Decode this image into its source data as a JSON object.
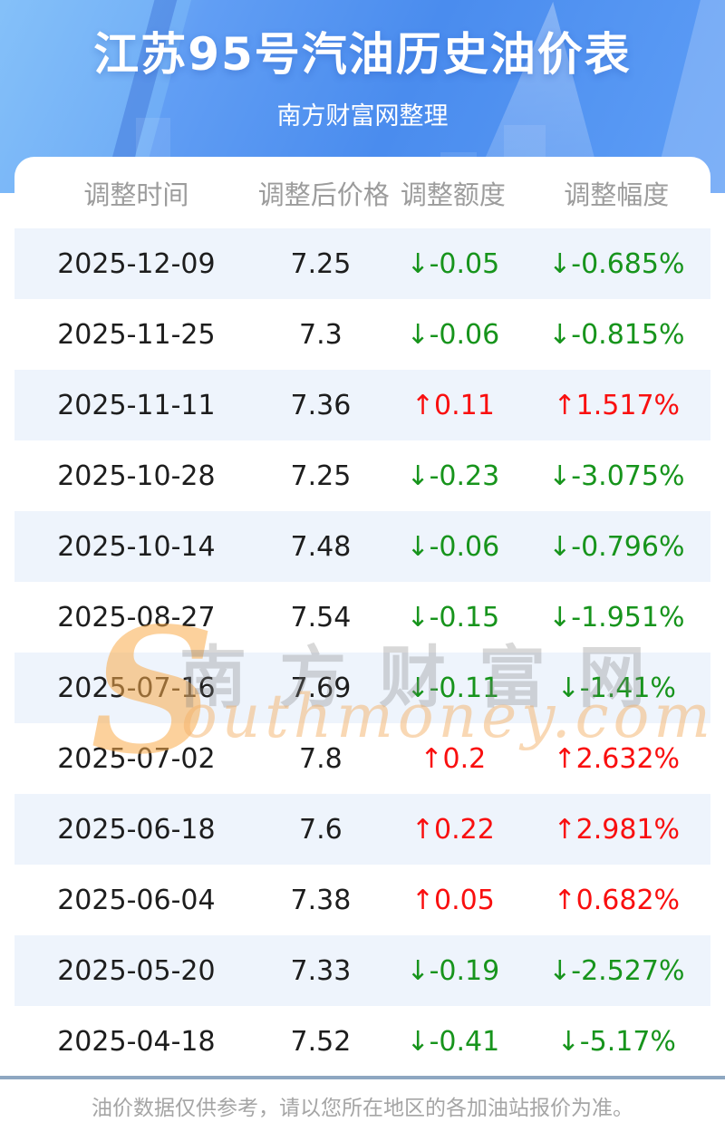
{
  "page": {
    "title": "江苏95号汽油历史油价表",
    "subtitle": "南方财富网整理",
    "footer_note": "油价数据仅供参考，请以您所在地区的各加油站报价为准。"
  },
  "watermark": {
    "initial": "S",
    "cn_text": "南方财富网",
    "latin_text": "outhmoney.com"
  },
  "icons": {
    "up_arrow": "↑",
    "down_arrow": "↓"
  },
  "colors": {
    "hero_blue": "#4a8cee",
    "stripe_blue": "#eef4fc",
    "up_red": "#f90f0f",
    "down_green": "#17941c",
    "divider_blue_gray": "#8ea7c1",
    "header_text_gray": "#9c9c9c"
  },
  "table": {
    "columns": [
      "调整时间",
      "调整后价格",
      "调整额度",
      "调整幅度"
    ],
    "rows": [
      {
        "date": "2025-12-09",
        "price": "7.25",
        "change": "-0.05",
        "pct": "-0.685%",
        "direction": "down"
      },
      {
        "date": "2025-11-25",
        "price": "7.3",
        "change": "-0.06",
        "pct": "-0.815%",
        "direction": "down"
      },
      {
        "date": "2025-11-11",
        "price": "7.36",
        "change": "0.11",
        "pct": "1.517%",
        "direction": "up"
      },
      {
        "date": "2025-10-28",
        "price": "7.25",
        "change": "-0.23",
        "pct": "-3.075%",
        "direction": "down"
      },
      {
        "date": "2025-10-14",
        "price": "7.48",
        "change": "-0.06",
        "pct": "-0.796%",
        "direction": "down"
      },
      {
        "date": "2025-08-27",
        "price": "7.54",
        "change": "-0.15",
        "pct": "-1.951%",
        "direction": "down"
      },
      {
        "date": "2025-07-16",
        "price": "7.69",
        "change": "-0.11",
        "pct": "-1.41%",
        "direction": "down"
      },
      {
        "date": "2025-07-02",
        "price": "7.8",
        "change": "0.2",
        "pct": "2.632%",
        "direction": "up"
      },
      {
        "date": "2025-06-18",
        "price": "7.6",
        "change": "0.22",
        "pct": "2.981%",
        "direction": "up"
      },
      {
        "date": "2025-06-04",
        "price": "7.38",
        "change": "0.05",
        "pct": "0.682%",
        "direction": "up"
      },
      {
        "date": "2025-05-20",
        "price": "7.33",
        "change": "-0.19",
        "pct": "-2.527%",
        "direction": "down"
      },
      {
        "date": "2025-04-18",
        "price": "7.52",
        "change": "-0.41",
        "pct": "-5.17%",
        "direction": "down"
      }
    ]
  },
  "chart_data": {
    "type": "table",
    "title": "江苏95号汽油历史油价表",
    "subtitle": "南方财富网整理",
    "columns": [
      "调整时间",
      "调整后价格",
      "调整额度",
      "调整幅度"
    ],
    "rows": [
      [
        "2025-12-09",
        "7.25",
        "↓-0.05",
        "↓-0.685%"
      ],
      [
        "2025-11-25",
        "7.3",
        "↓-0.06",
        "↓-0.815%"
      ],
      [
        "2025-11-11",
        "7.36",
        "↑0.11",
        "↑1.517%"
      ],
      [
        "2025-10-28",
        "7.25",
        "↓-0.23",
        "↓-3.075%"
      ],
      [
        "2025-10-14",
        "7.48",
        "↓-0.06",
        "↓-0.796%"
      ],
      [
        "2025-08-27",
        "7.54",
        "↓-0.15",
        "↓-1.951%"
      ],
      [
        "2025-07-16",
        "7.69",
        "↓-0.11",
        "↓-1.41%"
      ],
      [
        "2025-07-02",
        "7.8",
        "↑0.2",
        "↑2.632%"
      ],
      [
        "2025-06-18",
        "7.6",
        "↑0.22",
        "↑2.981%"
      ],
      [
        "2025-06-04",
        "7.38",
        "↑0.05",
        "↑0.682%"
      ],
      [
        "2025-05-20",
        "7.33",
        "↓-0.19",
        "↓-2.527%"
      ],
      [
        "2025-04-18",
        "7.52",
        "↓-0.41",
        "↓-5.17%"
      ]
    ],
    "prices_numeric": [
      7.25,
      7.3,
      7.36,
      7.25,
      7.48,
      7.54,
      7.69,
      7.8,
      7.6,
      7.38,
      7.33,
      7.52
    ]
  }
}
